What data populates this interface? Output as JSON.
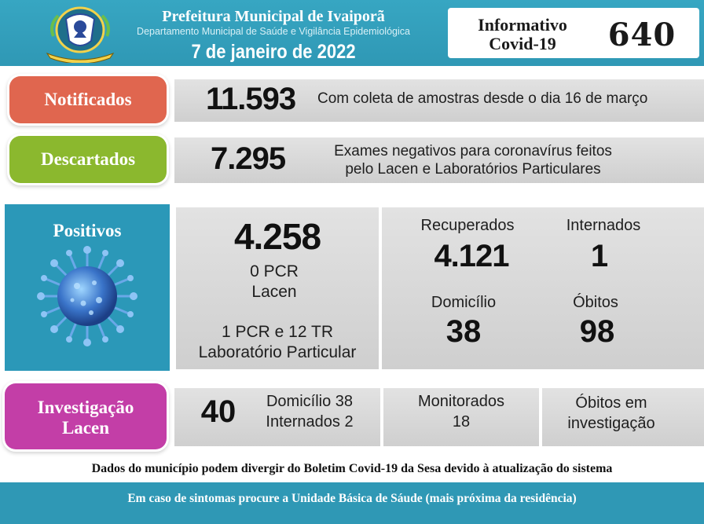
{
  "header": {
    "title": "Prefeitura Municipal de Ivaiporã",
    "subtitle": "Departamento Municipal de Saúde e Vigilância Epidemiológica",
    "date": "7 de janeiro de 2022",
    "info_label_line1": "Informativo",
    "info_label_line2": "Covid-19",
    "info_number": "640",
    "logo_icon": "municipal-coat-of-arms-icon"
  },
  "notificados": {
    "label": "Notificados",
    "value": "11.593",
    "description": "Com coleta de amostras desde o dia 16 de março",
    "color": "#e0664f"
  },
  "descartados": {
    "label": "Descartados",
    "value": "7.295",
    "description_line1": "Exames negativos para coronavírus feitos",
    "description_line2": "pelo Lacen e Laboratórios Particulares",
    "color": "#8bb82e"
  },
  "positivos": {
    "label": "Positivos",
    "icon": "coronavirus-icon",
    "color": "#2b98b8",
    "total": "4.258",
    "pcr_lacen_line1": "0 PCR",
    "pcr_lacen_line2": "Lacen",
    "particular_line1": "1 PCR e 12 TR",
    "particular_line2": "Laboratório Particular",
    "recuperados_label": "Recuperados",
    "recuperados_value": "4.121",
    "internados_label": "Internados",
    "internados_value": "1",
    "domicilio_label": "Domicílio",
    "domicilio_value": "38",
    "obitos_label": "Óbitos",
    "obitos_value": "98"
  },
  "investigacao": {
    "label_line1": "Investigação",
    "label_line2": "Lacen",
    "color": "#c33ea7",
    "value": "40",
    "domicilio": "Domicílio 38",
    "internados": "Internados 2",
    "monitorados_label": "Monitorados",
    "monitorados_value": "18",
    "obitos_line1": "Óbitos em",
    "obitos_line2": "investigação"
  },
  "footer": {
    "disclaimer": "Dados do município podem divergir do Boletim Covid-19 da Sesa devido à atualização do sistema",
    "advice": "Em caso de sintomas procure a Unidade Básica de Sáude (mais próxima da residência)"
  }
}
